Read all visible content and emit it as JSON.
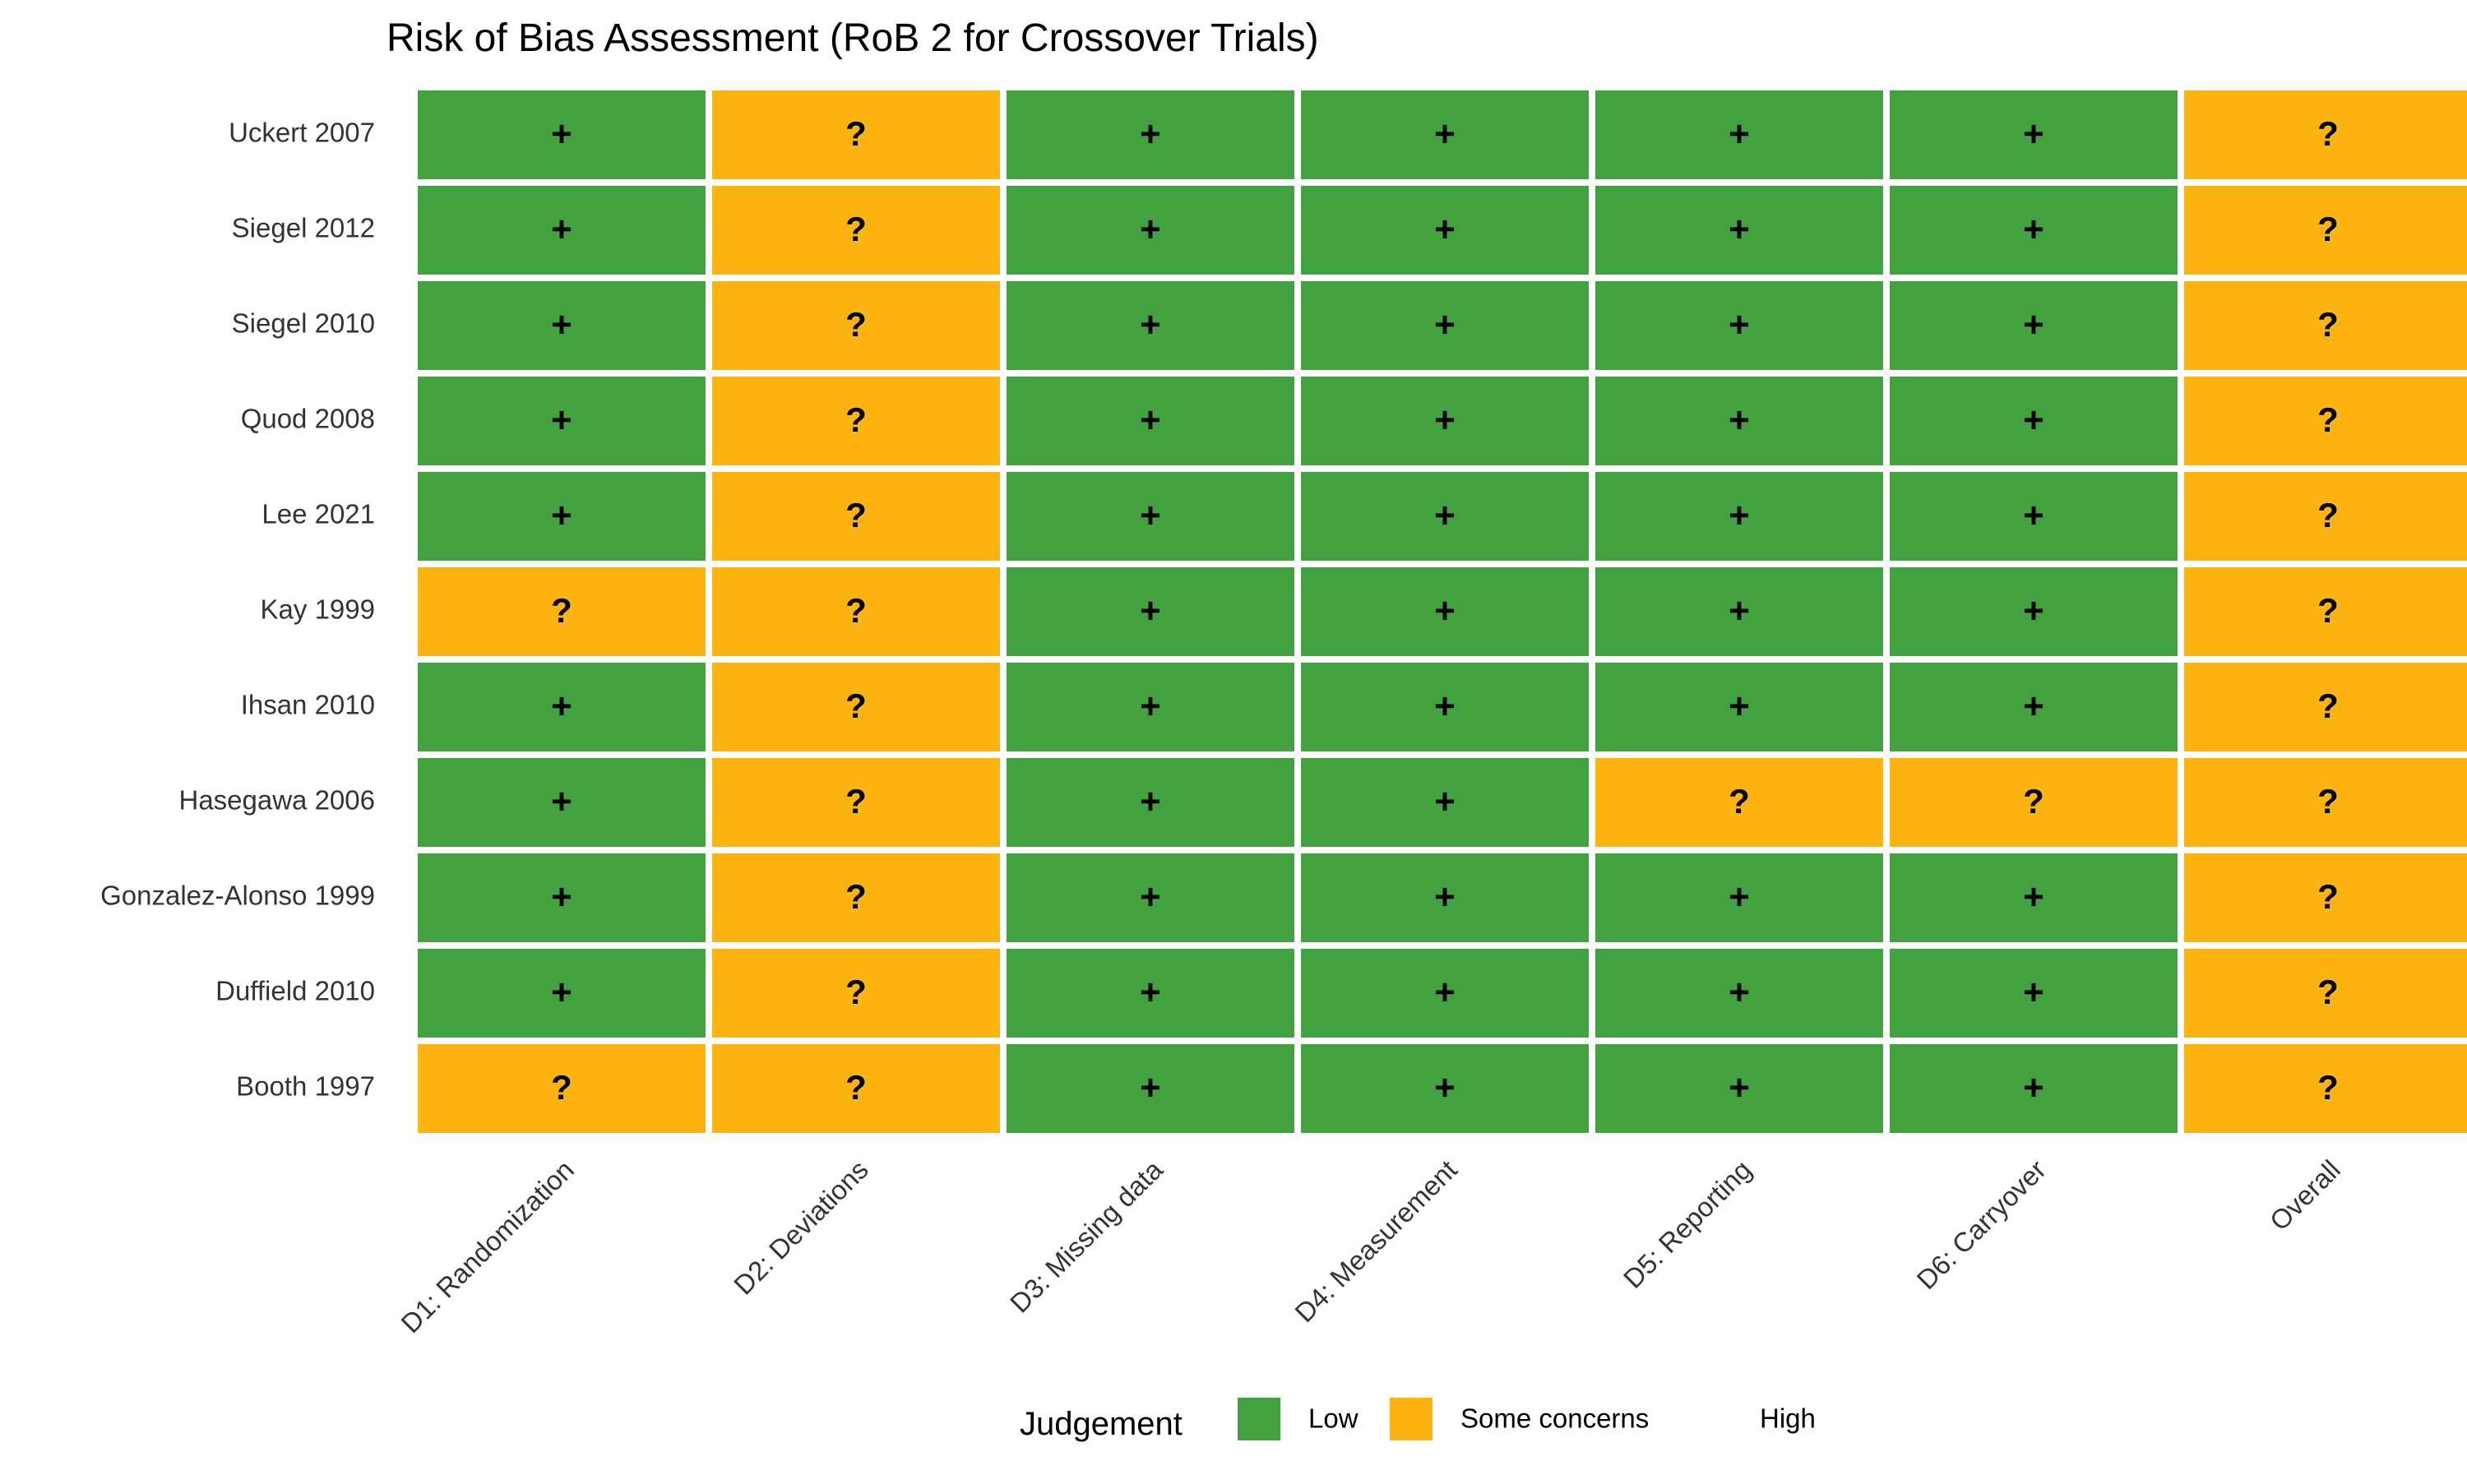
{
  "chart_data": {
    "type": "heatmap",
    "title": "Risk of Bias Assessment (RoB 2 for Crossover Trials)",
    "rows": [
      "Uckert 2007",
      "Siegel 2012",
      "Siegel 2010",
      "Quod 2008",
      "Lee 2021",
      "Kay 1999",
      "Ihsan 2010",
      "Hasegawa 2006",
      "Gonzalez-Alonso 1999",
      "Duffield 2010",
      "Booth 1997"
    ],
    "columns": [
      "D1: Randomization",
      "D2: Deviations",
      "D3: Missing data",
      "D4: Measurement",
      "D5: Reporting",
      "D6: Carryover",
      "Overall"
    ],
    "values": [
      [
        "Low",
        "Some concerns",
        "Low",
        "Low",
        "Low",
        "Low",
        "Some concerns"
      ],
      [
        "Low",
        "Some concerns",
        "Low",
        "Low",
        "Low",
        "Low",
        "Some concerns"
      ],
      [
        "Low",
        "Some concerns",
        "Low",
        "Low",
        "Low",
        "Low",
        "Some concerns"
      ],
      [
        "Low",
        "Some concerns",
        "Low",
        "Low",
        "Low",
        "Low",
        "Some concerns"
      ],
      [
        "Low",
        "Some concerns",
        "Low",
        "Low",
        "Low",
        "Low",
        "Some concerns"
      ],
      [
        "Some concerns",
        "Some concerns",
        "Low",
        "Low",
        "Low",
        "Low",
        "Some concerns"
      ],
      [
        "Low",
        "Some concerns",
        "Low",
        "Low",
        "Low",
        "Low",
        "Some concerns"
      ],
      [
        "Low",
        "Some concerns",
        "Low",
        "Low",
        "Some concerns",
        "Some concerns",
        "Some concerns"
      ],
      [
        "Low",
        "Some concerns",
        "Low",
        "Low",
        "Low",
        "Low",
        "Some concerns"
      ],
      [
        "Low",
        "Some concerns",
        "Low",
        "Low",
        "Low",
        "Low",
        "Some concerns"
      ],
      [
        "Some concerns",
        "Some concerns",
        "Low",
        "Low",
        "Low",
        "Low",
        "Some concerns"
      ]
    ],
    "symbols": {
      "Low": "+",
      "Some concerns": "?",
      "High": "-"
    },
    "colors": {
      "Low": "#43A240",
      "Some concerns": "#FDB410",
      "High": "#D7301F"
    },
    "legend": {
      "title": "Judgement",
      "entries": [
        "Low",
        "Some concerns",
        "High"
      ],
      "position": "bottom"
    }
  }
}
